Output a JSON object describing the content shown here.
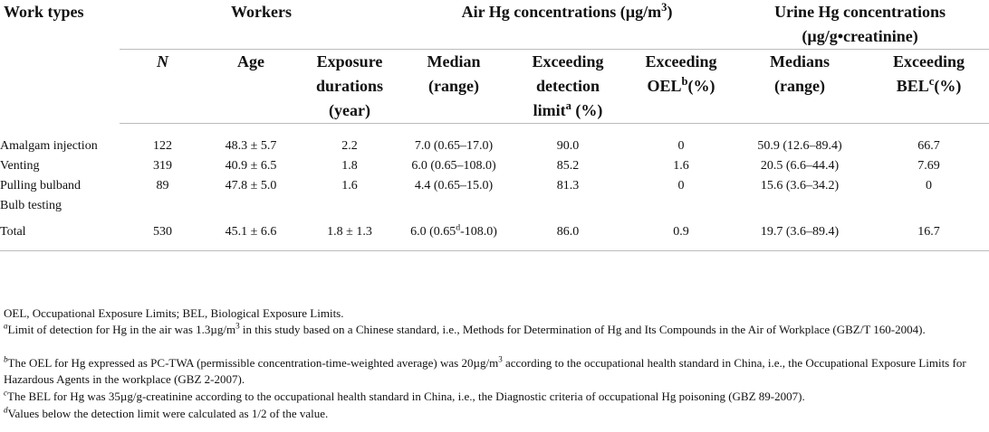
{
  "header": {
    "work_types": "Work types",
    "workers": "Workers",
    "air_hg": "Air Hg concentrations (µg/m",
    "air_hg_sup": "3",
    "air_hg_close": ")",
    "urine_hg_line1": "Urine Hg concentrations",
    "urine_hg_line2": "(µg/g•creatinine)",
    "cols": {
      "n": "N",
      "age": "Age",
      "exposure": "Exposure durations (year)",
      "air_median": "Median (range)",
      "air_exceed_detect": "Exceeding detection limit",
      "air_exceed_detect_sup": "a",
      "air_exceed_detect_unit": " (%)",
      "air_exceed_oel": "Exceeding OEL",
      "air_exceed_oel_sup": "b",
      "air_exceed_oel_unit": "(%)",
      "urine_median": "Medians (range)",
      "urine_exceed_bel": "Exceeding BEL",
      "urine_exceed_bel_sup": "c",
      "urine_exceed_bel_unit": "(%)"
    }
  },
  "rows": [
    {
      "label": "Amalgam injection",
      "n": "122",
      "age": "48.3 ± 5.7",
      "exposure": "2.2",
      "air_median": "7.0 (0.65–17.0)",
      "air_exceed_detect": "90.0",
      "air_exceed_oel": "0",
      "urine_median": "50.9 (12.6–89.4)",
      "urine_exceed_bel": "66.7"
    },
    {
      "label": "Venting",
      "n": "319",
      "age": "40.9 ± 6.5",
      "exposure": "1.8",
      "air_median": "6.0 (0.65–108.0)",
      "air_exceed_detect": "85.2",
      "air_exceed_oel": "1.6",
      "urine_median": "20.5 (6.6–44.4)",
      "urine_exceed_bel": "7.69"
    },
    {
      "label": "Pulling bulband",
      "n": "89",
      "age": "47.8 ± 5.0",
      "exposure": "1.6",
      "air_median": "4.4 (0.65–15.0)",
      "air_exceed_detect": "81.3",
      "air_exceed_oel": "0",
      "urine_median": "15.6 (3.6–34.2)",
      "urine_exceed_bel": "0"
    },
    {
      "label": "Bulb testing",
      "n": "",
      "age": "",
      "exposure": "",
      "air_median": "",
      "air_exceed_detect": "",
      "air_exceed_oel": "",
      "urine_median": "",
      "urine_exceed_bel": ""
    }
  ],
  "total": {
    "label": "Total",
    "n": "530",
    "age": "45.1 ± 6.6",
    "exposure": "1.8 ± 1.3",
    "air_median_pre": "6.0 (0.65",
    "air_median_sup": "d",
    "air_median_post": "-108.0)",
    "air_exceed_detect": "86.0",
    "air_exceed_oel": "0.9",
    "urine_median": "19.7 (3.6–89.4)",
    "urine_exceed_bel": "16.7"
  },
  "footnotes": {
    "abbrev": "OEL, Occupational Exposure Limits; BEL, Biological Exposure Limits.",
    "a_mark": "a",
    "a_text_1": "Limit of detection for Hg in the air was 1.3µg/m",
    "a_text_sup": "3",
    "a_text_2": " in this study based on a Chinese standard, i.e., Methods for Determination of Hg and Its Compounds in the Air of Workplace (GBZ/T 160-2004).",
    "b_mark": "b",
    "b_text_1": "The OEL for Hg expressed as PC-TWA (permissible concentration-time-weighted average) was 20µg/m",
    "b_text_sup": "3",
    "b_text_2": " according to the occupational health standard in China, i.e., the Occupational Exposure Limits for Hazardous Agents in the workplace (GBZ 2-2007).",
    "c_mark": "c",
    "c_text": "The BEL for Hg was 35µg/g-creatinine according to the occupational health standard in China, i.e., the Diagnostic criteria of occupational Hg poisoning (GBZ 89-2007).",
    "d_mark": "d",
    "d_text": "Values below the detection limit were calculated as 1/2 of the value."
  }
}
